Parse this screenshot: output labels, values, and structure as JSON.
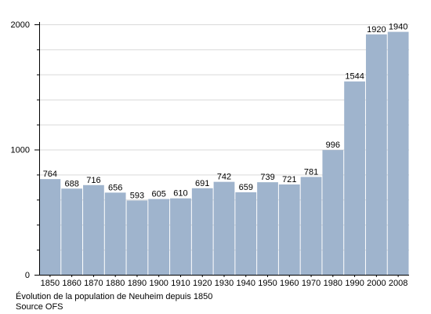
{
  "chart_data": {
    "type": "bar",
    "categories": [
      "1850",
      "1860",
      "1870",
      "1880",
      "1890",
      "1900",
      "1910",
      "1920",
      "1930",
      "1940",
      "1950",
      "1960",
      "1970",
      "1980",
      "1990",
      "2000",
      "2008"
    ],
    "values": [
      764,
      688,
      716,
      656,
      593,
      605,
      610,
      691,
      742,
      659,
      739,
      721,
      781,
      996,
      1544,
      1920,
      1940
    ],
    "data_labels": [
      "764",
      "688",
      "716",
      "656",
      "593",
      "605",
      "610",
      "691",
      "742",
      "659",
      "739",
      "721",
      "781",
      "996",
      "1544",
      "1920",
      "1940"
    ],
    "ylim": [
      0,
      2000
    ],
    "y_ticks": [
      "0",
      "1000",
      "2000"
    ],
    "grid": true,
    "bar_color": "#9fb4cd",
    "grid_color": "#d9d9d9",
    "caption_lines": [
      "Évolution de la population de Neuheim depuis 1850",
      "Source OFS"
    ]
  }
}
